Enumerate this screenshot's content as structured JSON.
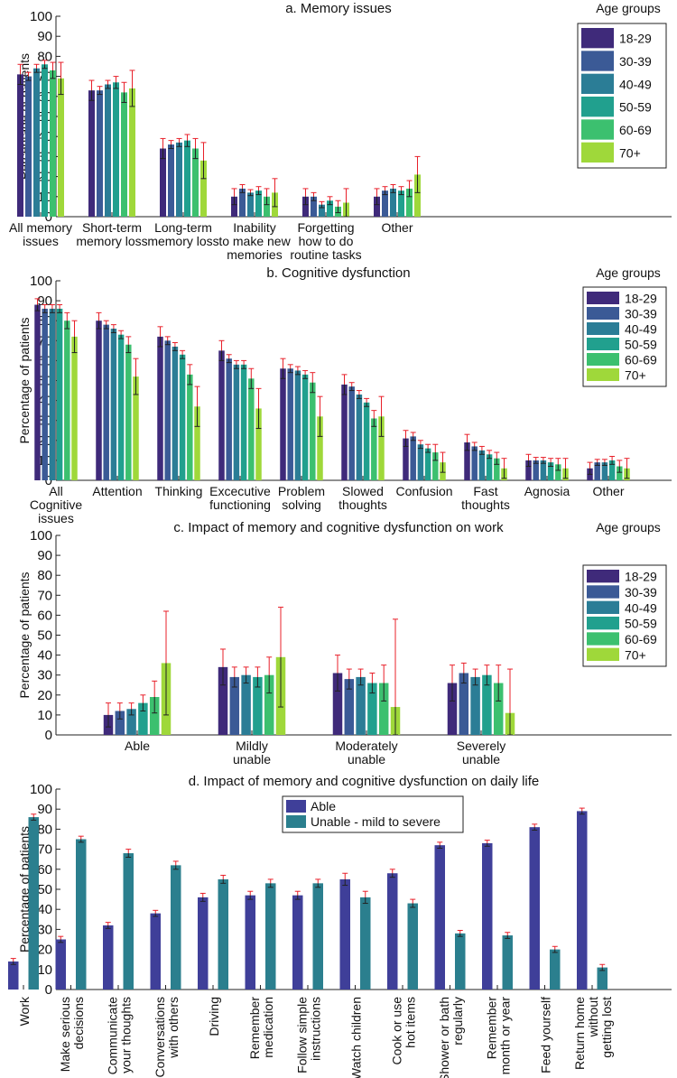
{
  "age_groups_label": "Age groups",
  "age_groups": [
    "18-29",
    "30-39",
    "40-49",
    "50-59",
    "60-69",
    "70+"
  ],
  "colors": {
    "age": [
      "#3f2a7a",
      "#3b5a96",
      "#2b7d96",
      "#21a08e",
      "#3cc06f",
      "#9fd83a"
    ],
    "able": "#3f3f99",
    "unable": "#2b7f8e",
    "error": "#e8202a"
  },
  "chart_data": [
    {
      "id": "a",
      "type": "bar",
      "title": "a. Memory issues",
      "ylabel": "Percentage of patients",
      "ylim": [
        0,
        100
      ],
      "yticks": [
        0,
        10,
        20,
        30,
        40,
        50,
        60,
        70,
        80,
        90,
        100
      ],
      "categories": [
        [
          "All memory",
          "issues"
        ],
        [
          "Short-term",
          "memory loss"
        ],
        [
          "Long-term",
          "memory loss"
        ],
        [
          "Inability",
          "to make new",
          "memories"
        ],
        [
          "Forgetting",
          "how to do",
          "routine tasks"
        ],
        [
          "Other"
        ]
      ],
      "series": [
        {
          "name": "18-29",
          "values": [
            71,
            63,
            34,
            10,
            10,
            10
          ],
          "errors": [
            5,
            5,
            5,
            4,
            4,
            4
          ]
        },
        {
          "name": "30-39",
          "values": [
            70,
            63,
            36,
            14,
            10,
            13
          ],
          "errors": [
            2,
            2,
            2,
            2,
            2,
            2
          ]
        },
        {
          "name": "40-49",
          "values": [
            74,
            66,
            37,
            12,
            6,
            14
          ],
          "errors": [
            2,
            2,
            2,
            1.5,
            1.5,
            2
          ]
        },
        {
          "name": "50-59",
          "values": [
            76,
            67,
            38,
            13,
            8,
            13
          ],
          "errors": [
            2,
            3,
            3,
            2,
            2,
            2
          ]
        },
        {
          "name": "60-69",
          "values": [
            73,
            62,
            34,
            10,
            5,
            14
          ],
          "errors": [
            4,
            5,
            5,
            4,
            3,
            4
          ]
        },
        {
          "name": "70+",
          "values": [
            69,
            64,
            28,
            12,
            7,
            21
          ],
          "errors": [
            8,
            9,
            9,
            7,
            7,
            9
          ]
        }
      ]
    },
    {
      "id": "b",
      "type": "bar",
      "title": "b. Cognitive dysfunction",
      "ylabel": "Percentage of patients",
      "ylim": [
        0,
        100
      ],
      "yticks": [
        0,
        10,
        20,
        30,
        40,
        50,
        60,
        70,
        80,
        90,
        100
      ],
      "categories": [
        [
          "All",
          "Cognitive",
          "issues"
        ],
        [
          "Attention"
        ],
        [
          "Thinking"
        ],
        [
          "Excecutive",
          "functioning"
        ],
        [
          "Problem",
          "solving"
        ],
        [
          "Slowed",
          "thoughts"
        ],
        [
          "Confusion"
        ],
        [
          "Fast",
          "thoughts"
        ],
        [
          "Agnosia"
        ],
        [
          "Other"
        ]
      ],
      "series": [
        {
          "name": "18-29",
          "values": [
            88,
            80,
            72,
            65,
            56,
            48,
            21,
            19,
            10,
            6
          ],
          "errors": [
            3,
            4,
            5,
            5,
            5,
            5,
            4,
            4,
            3,
            3
          ]
        },
        {
          "name": "30-39",
          "values": [
            86,
            78,
            70,
            61,
            56,
            47,
            22,
            17,
            10,
            9
          ],
          "errors": [
            2,
            2,
            2,
            2,
            2,
            2,
            2,
            2,
            1.5,
            1.5
          ]
        },
        {
          "name": "40-49",
          "values": [
            86,
            76,
            67,
            58,
            55,
            43,
            18,
            15,
            10,
            9
          ],
          "errors": [
            2,
            2,
            2,
            2,
            2,
            2,
            2,
            2,
            1.5,
            1.5
          ]
        },
        {
          "name": "50-59",
          "values": [
            86,
            73,
            63,
            58,
            53,
            39,
            16,
            13,
            9,
            10
          ],
          "errors": [
            2,
            2,
            2,
            2,
            2,
            2,
            2,
            2,
            2,
            2
          ]
        },
        {
          "name": "60-69",
          "values": [
            80,
            68,
            53,
            51,
            49,
            31,
            14,
            11,
            8,
            7
          ],
          "errors": [
            4,
            4,
            5,
            5,
            5,
            4,
            4,
            3,
            3,
            3
          ]
        },
        {
          "name": "70+",
          "values": [
            72,
            52,
            37,
            36,
            32,
            32,
            9,
            6,
            6,
            6
          ],
          "errors": [
            8,
            9,
            10,
            10,
            10,
            10,
            5,
            5,
            5,
            5
          ]
        }
      ]
    },
    {
      "id": "c",
      "type": "bar",
      "title": "c. Impact of memory and cognitive dysfunction on work",
      "ylabel": "Percentage of patients",
      "ylim": [
        0,
        100
      ],
      "yticks": [
        0,
        10,
        20,
        30,
        40,
        50,
        60,
        70,
        80,
        90,
        100
      ],
      "categories": [
        [
          "Able"
        ],
        [
          "Mildly",
          "unable"
        ],
        [
          "Moderately",
          "unable"
        ],
        [
          "Severely",
          "unable"
        ]
      ],
      "series": [
        {
          "name": "18-29",
          "values": [
            10,
            34,
            31,
            26
          ],
          "errors": [
            6,
            9,
            9,
            9
          ]
        },
        {
          "name": "30-39",
          "values": [
            12,
            29,
            28,
            31
          ],
          "errors": [
            4,
            5,
            5,
            5
          ]
        },
        {
          "name": "40-49",
          "values": [
            13,
            30,
            29,
            29
          ],
          "errors": [
            3,
            4,
            4,
            4
          ]
        },
        {
          "name": "50-59",
          "values": [
            16,
            29,
            26,
            30
          ],
          "errors": [
            4,
            5,
            5,
            5
          ]
        },
        {
          "name": "60-69",
          "values": [
            19,
            30,
            26,
            26
          ],
          "errors": [
            8,
            9,
            9,
            9
          ]
        },
        {
          "name": "70+",
          "values": [
            36,
            39,
            14,
            11
          ],
          "errors": [
            26,
            25,
            44,
            22
          ]
        }
      ]
    },
    {
      "id": "d",
      "type": "bar",
      "title": "d. Impact of memory and cognitive dysfunction on daily life",
      "ylabel": "Percentage of patients",
      "ylim": [
        0,
        100
      ],
      "yticks": [
        0,
        10,
        20,
        30,
        40,
        50,
        60,
        70,
        80,
        90,
        100
      ],
      "categories": [
        [
          "Work"
        ],
        [
          "Make serious",
          "decisions"
        ],
        [
          "Communicate",
          "your thoughts"
        ],
        [
          "Conversations",
          "with others"
        ],
        [
          "Driving"
        ],
        [
          "Remember",
          "medication"
        ],
        [
          "Follow simple",
          "instructions"
        ],
        [
          "Watch children"
        ],
        [
          "Cook or use",
          "hot items"
        ],
        [
          "Shower or bath",
          "regularly"
        ],
        [
          "Remember",
          "month or year"
        ],
        [
          "Feed yourself"
        ],
        [
          "Return home",
          "without",
          "getting lost"
        ]
      ],
      "series": [
        {
          "name": "Able",
          "values": [
            14,
            25,
            32,
            38,
            46,
            47,
            47,
            55,
            58,
            72,
            73,
            81,
            89
          ],
          "errors": [
            1.5,
            1.5,
            1.5,
            1.5,
            2,
            2,
            2,
            3,
            2,
            1.5,
            1.5,
            1.5,
            1.5
          ]
        },
        {
          "name": "Unable - mild to severe",
          "values": [
            86,
            75,
            68,
            62,
            55,
            53,
            53,
            46,
            43,
            28,
            27,
            20,
            11
          ],
          "errors": [
            1.5,
            1.5,
            2,
            2,
            2,
            2,
            2,
            3,
            2,
            1.5,
            1.5,
            1.5,
            1.5
          ]
        }
      ]
    }
  ]
}
